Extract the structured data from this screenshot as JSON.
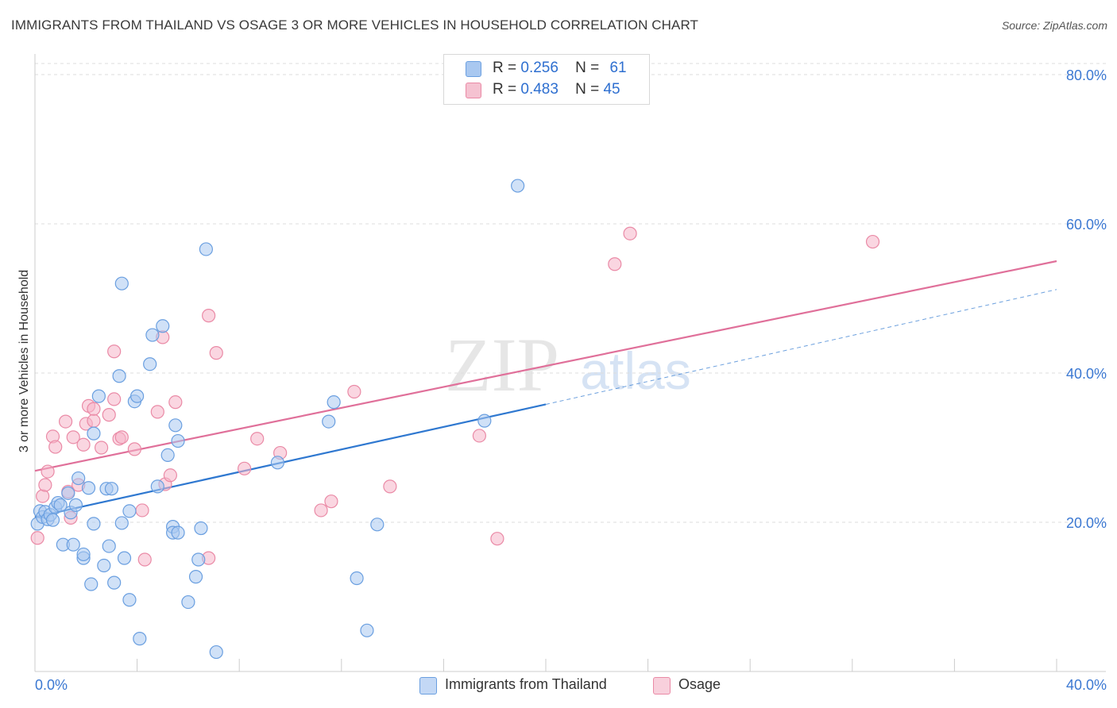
{
  "title": "IMMIGRANTS FROM THAILAND VS OSAGE 3 OR MORE VEHICLES IN HOUSEHOLD CORRELATION CHART",
  "source": "Source: ZipAtlas.com",
  "watermark": {
    "zip": "ZIP",
    "atlas": "atlas"
  },
  "legend_top": [
    {
      "r_label": "R =",
      "r_value": "0.256",
      "n_label": "N =",
      "n_value": "61"
    },
    {
      "r_label": "R =",
      "r_value": "0.483",
      "n_label": "N =",
      "n_value": "45"
    }
  ],
  "legend_bottom": [
    "Immigrants from Thailand",
    "Osage"
  ],
  "colors": {
    "blue_fill": "#a9c8f0",
    "blue_stroke": "#6a9fe0",
    "blue_line": "#2f78d0",
    "pink_fill": "#f5b5c8",
    "pink_stroke": "#ea8aa6",
    "pink_line": "#e0709a",
    "tick_label": "#3b78d2",
    "grid": "#dddddd"
  },
  "chart_data": {
    "type": "scatter",
    "title": "IMMIGRANTS FROM THAILAND VS OSAGE 3 OR MORE VEHICLES IN HOUSEHOLD CORRELATION CHART",
    "xlabel": "",
    "ylabel": "3 or more Vehicles in Household",
    "xlim": [
      0,
      40
    ],
    "ylim": [
      0,
      80
    ],
    "x_tick_labels": [
      "0.0%",
      "40.0%"
    ],
    "y_ticks": [
      20,
      40,
      60,
      80
    ],
    "y_tick_labels": [
      "20.0%",
      "40.0%",
      "60.0%",
      "80.0%"
    ],
    "grid": true,
    "series": [
      {
        "name": "Immigrants from Thailand",
        "color": "#6a9fe0",
        "points": [
          [
            0.1,
            19.8
          ],
          [
            0.2,
            21.5
          ],
          [
            0.3,
            20.7
          ],
          [
            0.4,
            21.4
          ],
          [
            0.5,
            20.4
          ],
          [
            0.6,
            21.0
          ],
          [
            0.7,
            20.3
          ],
          [
            0.8,
            22.0
          ],
          [
            0.9,
            22.6
          ],
          [
            1.0,
            22.3
          ],
          [
            1.1,
            17.0
          ],
          [
            1.3,
            23.9
          ],
          [
            1.4,
            21.3
          ],
          [
            1.5,
            17.0
          ],
          [
            1.6,
            22.3
          ],
          [
            1.7,
            25.9
          ],
          [
            1.9,
            15.2
          ],
          [
            1.9,
            15.7
          ],
          [
            2.1,
            24.6
          ],
          [
            2.2,
            11.7
          ],
          [
            2.3,
            19.8
          ],
          [
            2.3,
            31.9
          ],
          [
            2.5,
            36.9
          ],
          [
            2.7,
            14.2
          ],
          [
            2.8,
            24.5
          ],
          [
            2.9,
            16.8
          ],
          [
            3.0,
            24.5
          ],
          [
            3.1,
            11.9
          ],
          [
            3.3,
            39.6
          ],
          [
            3.4,
            52.0
          ],
          [
            3.4,
            19.9
          ],
          [
            3.5,
            15.2
          ],
          [
            3.7,
            9.6
          ],
          [
            3.7,
            21.5
          ],
          [
            3.9,
            36.2
          ],
          [
            4.0,
            36.9
          ],
          [
            4.1,
            4.4
          ],
          [
            4.5,
            41.2
          ],
          [
            4.6,
            45.1
          ],
          [
            4.8,
            24.8
          ],
          [
            5.0,
            46.3
          ],
          [
            5.2,
            29.0
          ],
          [
            5.4,
            19.4
          ],
          [
            5.4,
            18.6
          ],
          [
            5.5,
            33.0
          ],
          [
            5.6,
            18.6
          ],
          [
            5.6,
            30.9
          ],
          [
            6.0,
            9.3
          ],
          [
            6.3,
            12.7
          ],
          [
            6.4,
            15.0
          ],
          [
            6.5,
            19.2
          ],
          [
            6.7,
            56.6
          ],
          [
            7.1,
            2.6
          ],
          [
            9.5,
            28.0
          ],
          [
            11.5,
            33.5
          ],
          [
            11.7,
            36.1
          ],
          [
            12.6,
            12.5
          ],
          [
            13.0,
            5.5
          ],
          [
            13.4,
            19.7
          ],
          [
            17.6,
            33.6
          ],
          [
            18.9,
            65.1
          ]
        ],
        "trend": {
          "x": [
            0,
            20
          ],
          "y": [
            20.7,
            35.8
          ]
        },
        "trend_extension": {
          "x": [
            20,
            40
          ],
          "y": [
            35.8,
            51.2
          ]
        }
      },
      {
        "name": "Osage",
        "color": "#ea8aa6",
        "points": [
          [
            0.1,
            17.9
          ],
          [
            0.3,
            23.5
          ],
          [
            0.4,
            25.0
          ],
          [
            0.5,
            26.8
          ],
          [
            0.7,
            31.5
          ],
          [
            0.8,
            30.1
          ],
          [
            1.2,
            33.5
          ],
          [
            1.3,
            24.1
          ],
          [
            1.4,
            20.6
          ],
          [
            1.5,
            31.4
          ],
          [
            1.7,
            25.0
          ],
          [
            1.9,
            30.4
          ],
          [
            2.0,
            33.2
          ],
          [
            2.1,
            35.6
          ],
          [
            2.3,
            33.6
          ],
          [
            2.3,
            35.2
          ],
          [
            2.6,
            30.0
          ],
          [
            2.9,
            34.4
          ],
          [
            3.1,
            36.5
          ],
          [
            3.1,
            42.9
          ],
          [
            3.3,
            31.2
          ],
          [
            3.4,
            31.4
          ],
          [
            3.9,
            29.8
          ],
          [
            4.2,
            21.6
          ],
          [
            4.3,
            15.0
          ],
          [
            4.8,
            34.8
          ],
          [
            5.0,
            44.8
          ],
          [
            5.1,
            25.1
          ],
          [
            5.3,
            26.3
          ],
          [
            5.5,
            36.1
          ],
          [
            6.8,
            15.2
          ],
          [
            6.8,
            47.7
          ],
          [
            7.1,
            42.7
          ],
          [
            8.2,
            27.2
          ],
          [
            8.7,
            31.2
          ],
          [
            9.6,
            29.3
          ],
          [
            11.2,
            21.6
          ],
          [
            11.6,
            22.8
          ],
          [
            12.5,
            37.5
          ],
          [
            13.9,
            24.8
          ],
          [
            17.4,
            31.6
          ],
          [
            18.1,
            17.8
          ],
          [
            22.7,
            54.6
          ],
          [
            23.3,
            58.7
          ],
          [
            32.8,
            57.6
          ]
        ],
        "trend": {
          "x": [
            0,
            40
          ],
          "y": [
            26.9,
            55.0
          ]
        }
      }
    ]
  }
}
